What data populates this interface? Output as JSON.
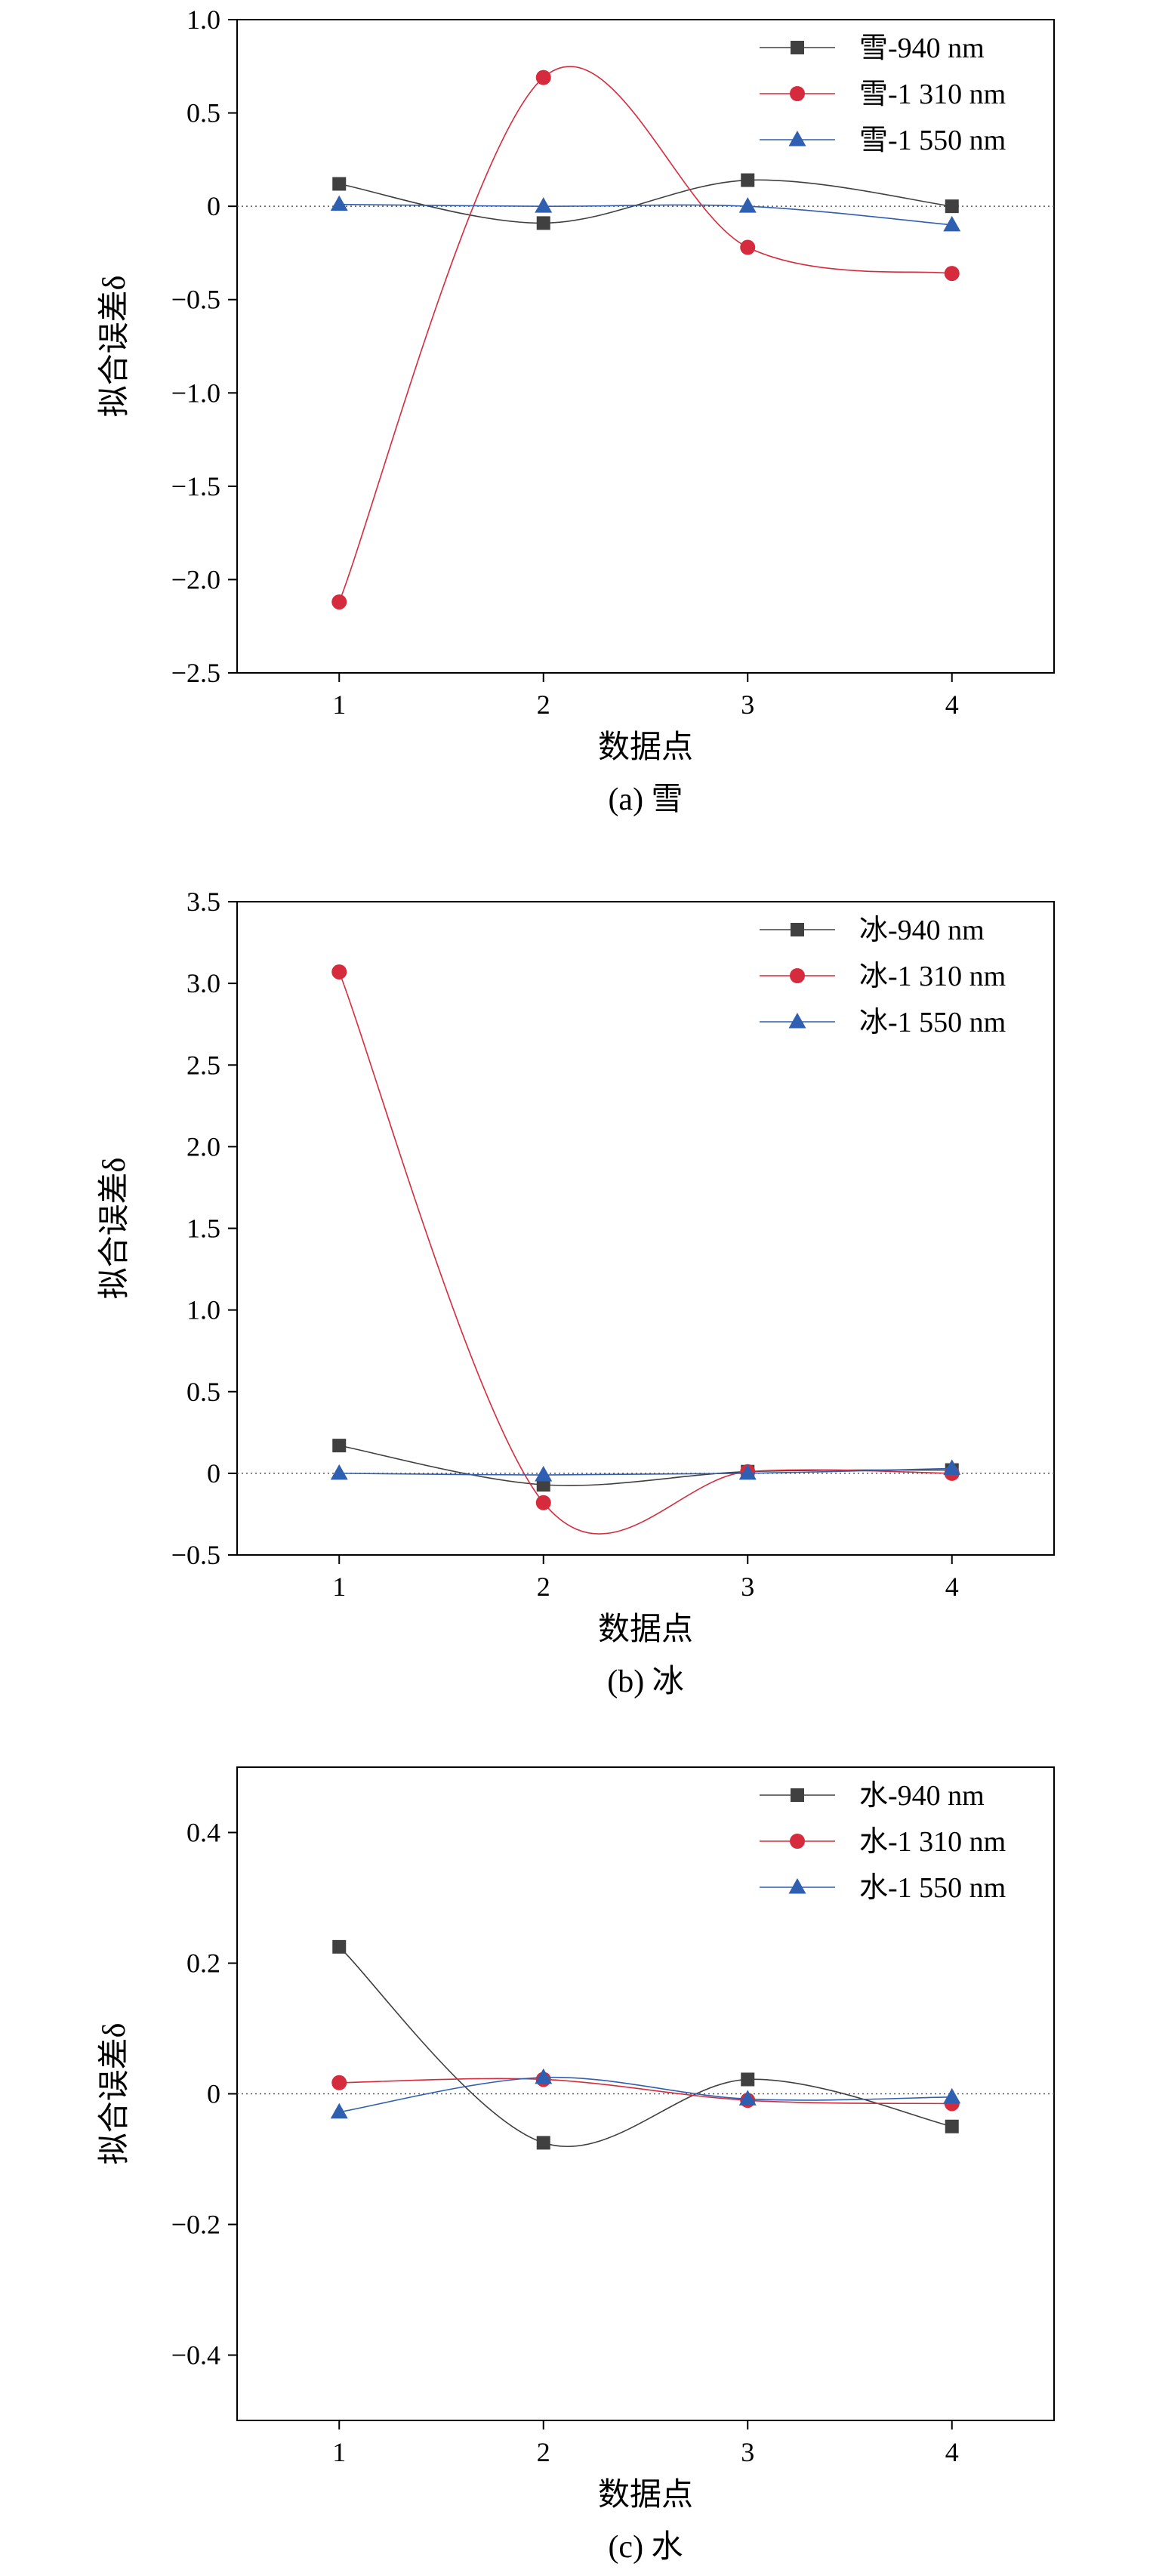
{
  "chart_data": [
    {
      "type": "line",
      "caption": "(a) 雪",
      "xlabel": "数据点",
      "ylabel": "拟合误差δ",
      "x": [
        1,
        2,
        3,
        4
      ],
      "xticks": [
        "1",
        "2",
        "3",
        "4"
      ],
      "ylim": [
        -2.5,
        1.0
      ],
      "yticks": [
        "1.0",
        "0.5",
        "0",
        "−0.5",
        "−1.0",
        "−1.5",
        "−2.0",
        "−2.5"
      ],
      "ytick_values": [
        1.0,
        0.5,
        0,
        -0.5,
        -1.0,
        -1.5,
        -2.0,
        -2.5
      ],
      "zero_line": true,
      "smooth": true,
      "legend_position": "top-right",
      "series": [
        {
          "name": "雪-940 nm",
          "color": "#404040",
          "marker": "square",
          "values": [
            0.12,
            -0.09,
            0.14,
            0.0
          ]
        },
        {
          "name": "雪-1 310 nm",
          "color": "#d62b3c",
          "marker": "circle",
          "values": [
            -2.12,
            0.69,
            -0.22,
            -0.36
          ]
        },
        {
          "name": "雪-1 550 nm",
          "color": "#2f5fb0",
          "marker": "triangle",
          "values": [
            0.01,
            0.0,
            0.0,
            -0.1
          ]
        }
      ]
    },
    {
      "type": "line",
      "caption": "(b) 冰",
      "xlabel": "数据点",
      "ylabel": "拟合误差δ",
      "x": [
        1,
        2,
        3,
        4
      ],
      "xticks": [
        "1",
        "2",
        "3",
        "4"
      ],
      "ylim": [
        -0.5,
        3.5
      ],
      "yticks": [
        "3.5",
        "3.0",
        "2.5",
        "2.0",
        "1.5",
        "1.0",
        "0.5",
        "0",
        "−0.5"
      ],
      "ytick_values": [
        3.5,
        3.0,
        2.5,
        2.0,
        1.5,
        1.0,
        0.5,
        0,
        -0.5
      ],
      "zero_line": true,
      "smooth": true,
      "legend_position": "top-right",
      "series": [
        {
          "name": "冰-940 nm",
          "color": "#404040",
          "marker": "square",
          "values": [
            0.17,
            -0.07,
            0.01,
            0.02
          ]
        },
        {
          "name": "冰-1 310 nm",
          "color": "#d62b3c",
          "marker": "circle",
          "values": [
            3.07,
            -0.18,
            0.01,
            0.0
          ]
        },
        {
          "name": "冰-1 550 nm",
          "color": "#2f5fb0",
          "marker": "triangle",
          "values": [
            0.0,
            -0.01,
            0.0,
            0.03
          ]
        }
      ]
    },
    {
      "type": "line",
      "caption": "(c) 水",
      "xlabel": "数据点",
      "ylabel": "拟合误差δ",
      "x": [
        1,
        2,
        3,
        4
      ],
      "xticks": [
        "1",
        "2",
        "3",
        "4"
      ],
      "ylim": [
        -0.5,
        0.5
      ],
      "yticks": [
        "0.4",
        "0.2",
        "0",
        "−0.2",
        "−0.4"
      ],
      "ytick_values": [
        0.4,
        0.2,
        0,
        -0.2,
        -0.4
      ],
      "zero_line": true,
      "smooth": true,
      "legend_position": "top-right",
      "series": [
        {
          "name": "水-940 nm",
          "color": "#404040",
          "marker": "square",
          "values": [
            0.225,
            -0.075,
            0.022,
            -0.05
          ]
        },
        {
          "name": "水-1 310 nm",
          "color": "#d62b3c",
          "marker": "circle",
          "values": [
            0.017,
            0.022,
            -0.01,
            -0.015
          ]
        },
        {
          "name": "水-1 550 nm",
          "color": "#2f5fb0",
          "marker": "triangle",
          "values": [
            -0.028,
            0.025,
            -0.008,
            -0.005
          ]
        }
      ]
    }
  ]
}
